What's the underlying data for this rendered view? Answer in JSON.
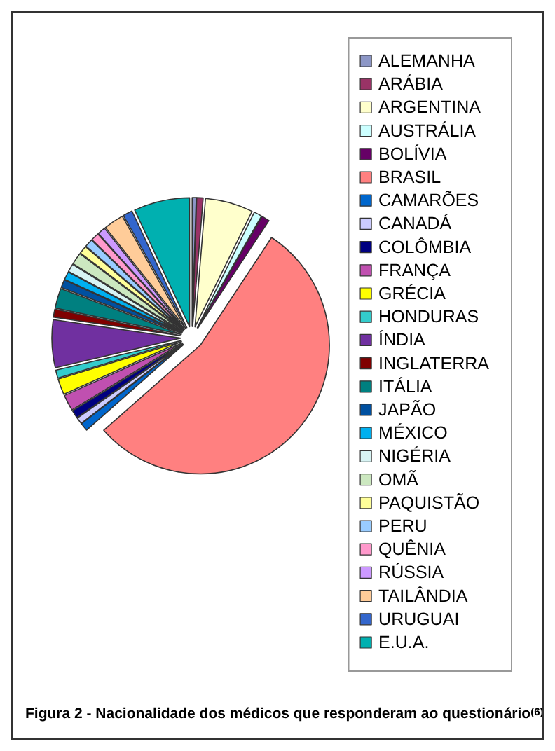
{
  "chart_data": {
    "type": "pie",
    "title": "Figura 2 - Nacionalidade dos médicos que responderam ao questionário$^{(6)}$",
    "categories": [
      "ALEMANHA",
      "ARÁBIA",
      "ARGENTINA",
      "AUSTRÁLIA",
      "BOLÍVIA",
      "BRASIL",
      "CAMARÕES",
      "CANADÁ",
      "COLÔMBIA",
      "FRANÇA",
      "GRÉCIA",
      "HONDURAS",
      "ÍNDIA",
      "INGLATERRA",
      "ITÁLIA",
      "JAPÃO",
      "MÉXICO",
      "NIGÉRIA",
      "OMÃ",
      "PAQUISTÃO",
      "PERU",
      "QUÊNIA",
      "RÚSSIA",
      "TAILÂNDIA",
      "URUGUAI",
      "E.U.A."
    ],
    "values": [
      0.5,
      0.8,
      6,
      1,
      1,
      54.2,
      1,
      0.8,
      1,
      2,
      2,
      1,
      6,
      1,
      2.5,
      1,
      1,
      1,
      1.5,
      1,
      1,
      1,
      1,
      2.5,
      1.2,
      7
    ],
    "colors": [
      "#8c96c6",
      "#993366",
      "#ffffcc",
      "#ccffff",
      "#660066",
      "#ff8080",
      "#0066cc",
      "#ccccff",
      "#000080",
      "#c050b0",
      "#ffff00",
      "#33cccc",
      "#7030a0",
      "#800000",
      "#008080",
      "#0050a0",
      "#00b0f0",
      "#d8f4f4",
      "#cce8c0",
      "#ffff99",
      "#99ccff",
      "#ff99cc",
      "#cc99ff",
      "#ffcc99",
      "#3366cc",
      "#00b0b0"
    ],
    "legend": "right"
  }
}
